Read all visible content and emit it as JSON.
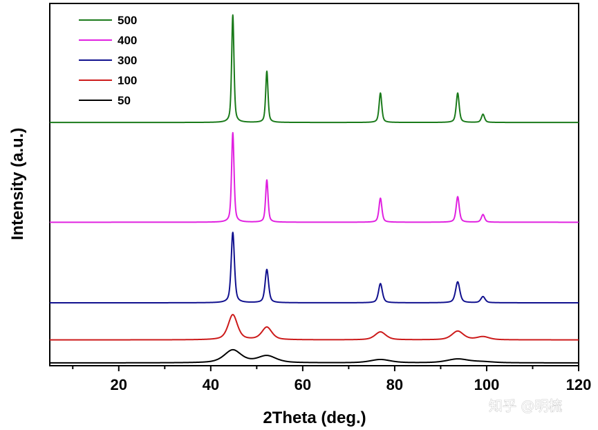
{
  "chart_data": {
    "type": "line",
    "title": "",
    "xlabel": "2Theta (deg.)",
    "ylabel": "Intensity (a.u.)",
    "xlim": [
      5,
      120
    ],
    "xticks": [
      20,
      40,
      60,
      80,
      100,
      120
    ],
    "xtick_labels": [
      "20",
      "40",
      "60",
      "80",
      "100",
      "120"
    ],
    "y_ticks_shown": false,
    "legend_position": "top-left",
    "series": [
      {
        "name": "500",
        "color": "#1a7a1a",
        "baseline": 0.905,
        "peaks": [
          {
            "pos": 44.8,
            "height": 0.42,
            "width": 0.3
          },
          {
            "pos": 52.2,
            "height": 0.2,
            "width": 0.3
          },
          {
            "pos": 76.9,
            "height": 0.115,
            "width": 0.35
          },
          {
            "pos": 93.7,
            "height": 0.115,
            "width": 0.38
          },
          {
            "pos": 99.2,
            "height": 0.032,
            "width": 0.4
          }
        ]
      },
      {
        "name": "400",
        "color": "#e020e0",
        "baseline": 0.515,
        "peaks": [
          {
            "pos": 44.8,
            "height": 0.35,
            "width": 0.32
          },
          {
            "pos": 52.2,
            "height": 0.165,
            "width": 0.32
          },
          {
            "pos": 76.9,
            "height": 0.094,
            "width": 0.38
          },
          {
            "pos": 93.7,
            "height": 0.1,
            "width": 0.4
          },
          {
            "pos": 99.2,
            "height": 0.03,
            "width": 0.42
          }
        ]
      },
      {
        "name": "300",
        "color": "#10108e",
        "baseline": 0.2,
        "peaks": [
          {
            "pos": 44.8,
            "height": 0.275,
            "width": 0.42
          },
          {
            "pos": 52.2,
            "height": 0.13,
            "width": 0.45
          },
          {
            "pos": 76.9,
            "height": 0.075,
            "width": 0.5
          },
          {
            "pos": 93.7,
            "height": 0.082,
            "width": 0.55
          },
          {
            "pos": 99.2,
            "height": 0.024,
            "width": 0.55
          }
        ]
      },
      {
        "name": "100",
        "color": "#cc1a1a",
        "baseline": 0.055,
        "peaks": [
          {
            "pos": 44.8,
            "height": 0.098,
            "width": 1.2
          },
          {
            "pos": 52.2,
            "height": 0.049,
            "width": 1.3
          },
          {
            "pos": 76.9,
            "height": 0.031,
            "width": 1.4
          },
          {
            "pos": 93.7,
            "height": 0.034,
            "width": 1.5
          },
          {
            "pos": 99.2,
            "height": 0.012,
            "width": 1.6
          }
        ]
      },
      {
        "name": "50",
        "color": "#000000",
        "baseline": -0.035,
        "peaks": [
          {
            "pos": 44.8,
            "height": 0.05,
            "width": 2.2
          },
          {
            "pos": 52.2,
            "height": 0.027,
            "width": 2.4
          },
          {
            "pos": 76.9,
            "height": 0.013,
            "width": 2.6
          },
          {
            "pos": 93.7,
            "height": 0.015,
            "width": 2.8
          },
          {
            "pos": 99.2,
            "height": 0.004,
            "width": 2.8
          }
        ]
      }
    ]
  },
  "watermark": "知乎 @明梳"
}
